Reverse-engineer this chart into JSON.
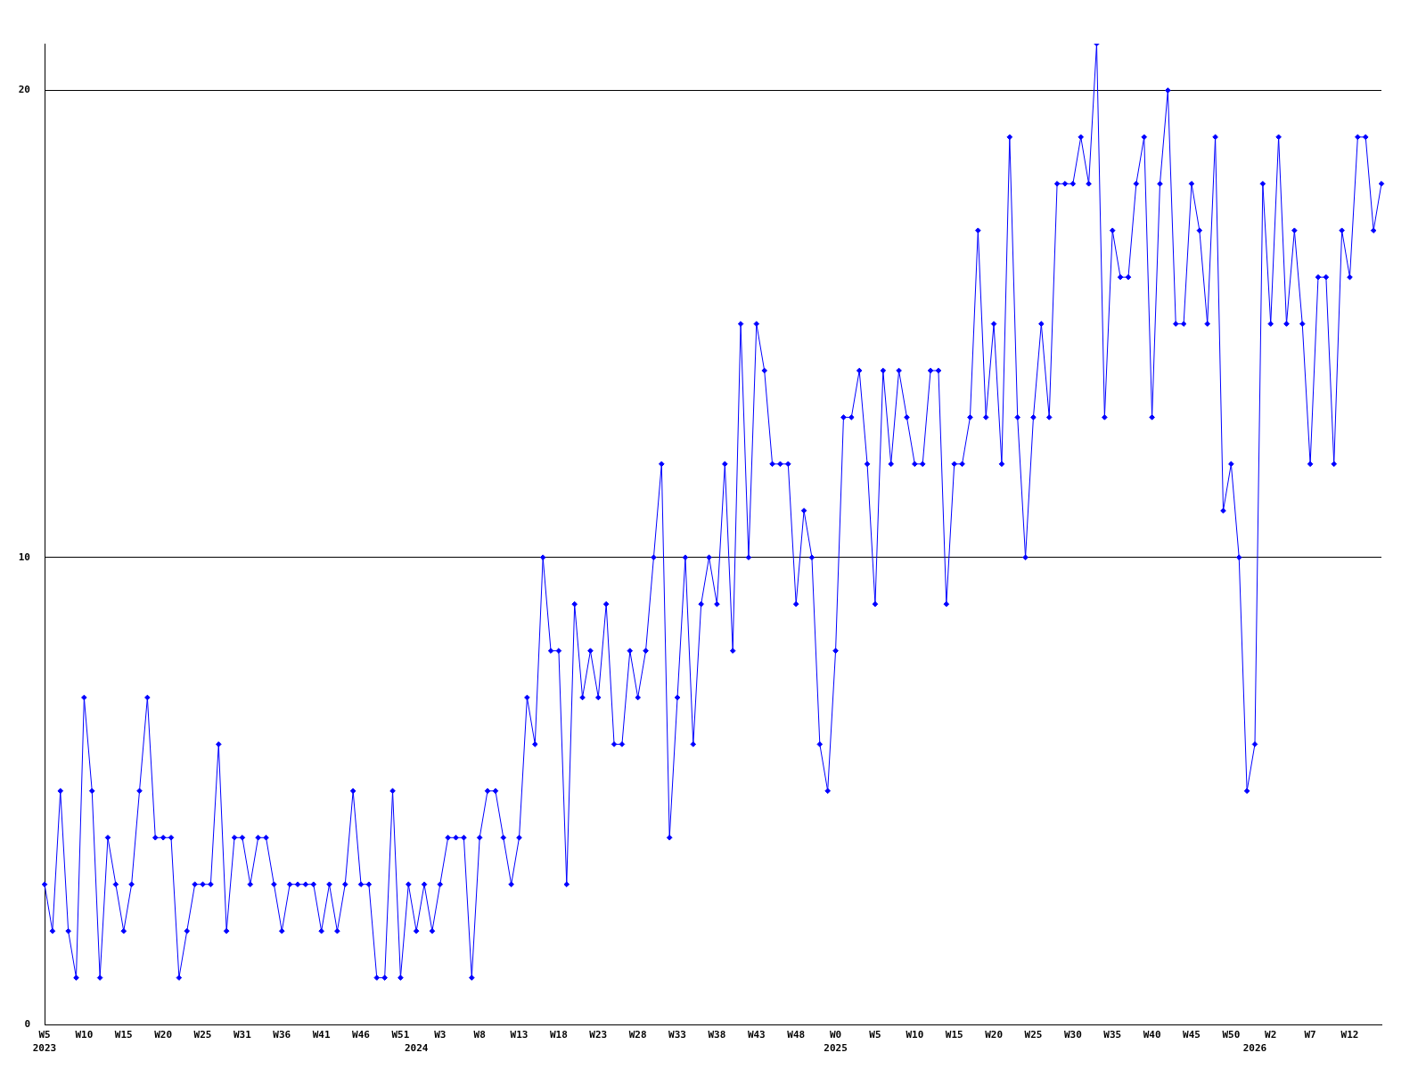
{
  "chart_data": {
    "type": "line",
    "categories": [
      "W5\n2023",
      null,
      null,
      null,
      null,
      "W10",
      null,
      null,
      null,
      null,
      "W15",
      null,
      null,
      null,
      null,
      "W20",
      null,
      null,
      null,
      null,
      "W25",
      null,
      null,
      null,
      null,
      "W31",
      null,
      null,
      null,
      null,
      "W36",
      null,
      null,
      null,
      null,
      "W41",
      null,
      null,
      null,
      null,
      "W46",
      null,
      null,
      null,
      null,
      "W51",
      null,
      "\n2024",
      null,
      null,
      "W3",
      null,
      null,
      null,
      null,
      "W8",
      null,
      null,
      null,
      null,
      "W13",
      null,
      null,
      null,
      null,
      "W18",
      null,
      null,
      null,
      null,
      "W23",
      null,
      null,
      null,
      null,
      "W28",
      null,
      null,
      null,
      null,
      "W33",
      null,
      null,
      null,
      null,
      "W38",
      null,
      null,
      null,
      null,
      "W43",
      null,
      null,
      null,
      null,
      "W48",
      null,
      null,
      null,
      null,
      "W0\n2025",
      null,
      null,
      null,
      null,
      "W5",
      null,
      null,
      null,
      null,
      "W10",
      null,
      null,
      null,
      null,
      "W15",
      null,
      null,
      null,
      null,
      "W20",
      null,
      null,
      null,
      null,
      "W25",
      null,
      null,
      null,
      null,
      "W30",
      null,
      null,
      null,
      null,
      "W35",
      null,
      null,
      null,
      null,
      "W40",
      null,
      null,
      null,
      null,
      "W45",
      null,
      null,
      null,
      null,
      "W50",
      null,
      null,
      "\n2026",
      null,
      "W2",
      null,
      null,
      null,
      null,
      "W7",
      null,
      null,
      null,
      null,
      "W12",
      null,
      null,
      null,
      null
    ],
    "values": [
      3,
      2,
      5,
      2,
      1,
      7,
      5,
      1,
      4,
      3,
      2,
      3,
      5,
      7,
      4,
      4,
      4,
      1,
      2,
      3,
      3,
      3,
      6,
      2,
      4,
      4,
      3,
      4,
      4,
      3,
      2,
      3,
      3,
      3,
      3,
      2,
      3,
      2,
      3,
      5,
      3,
      3,
      1,
      1,
      5,
      1,
      3,
      2,
      3,
      2,
      3,
      4,
      4,
      4,
      1,
      4,
      5,
      5,
      4,
      3,
      4,
      7,
      6,
      10,
      8,
      8,
      3,
      9,
      7,
      8,
      7,
      9,
      6,
      6,
      8,
      7,
      8,
      10,
      12,
      4,
      7,
      10,
      6,
      9,
      10,
      9,
      12,
      8,
      15,
      10,
      15,
      14,
      12,
      12,
      12,
      9,
      11,
      10,
      6,
      5,
      8,
      13,
      13,
      14,
      12,
      9,
      14,
      12,
      14,
      13,
      12,
      12,
      14,
      14,
      9,
      12,
      12,
      13,
      17,
      13,
      15,
      12,
      19,
      13,
      10,
      13,
      15,
      13,
      18,
      18,
      18,
      19,
      18,
      21,
      13,
      17,
      16,
      16,
      18,
      19,
      13,
      18,
      20,
      15,
      15,
      18,
      17,
      15,
      19,
      11,
      12,
      10,
      5,
      6,
      18,
      15,
      19,
      15,
      17,
      15,
      12,
      16,
      16,
      12,
      17,
      16,
      19,
      19,
      17,
      18
    ],
    "color": "#0000ff",
    "ylim": [
      0,
      21
    ],
    "yticks": [
      0,
      10,
      20
    ],
    "grid": "y",
    "marker": "diamond"
  }
}
